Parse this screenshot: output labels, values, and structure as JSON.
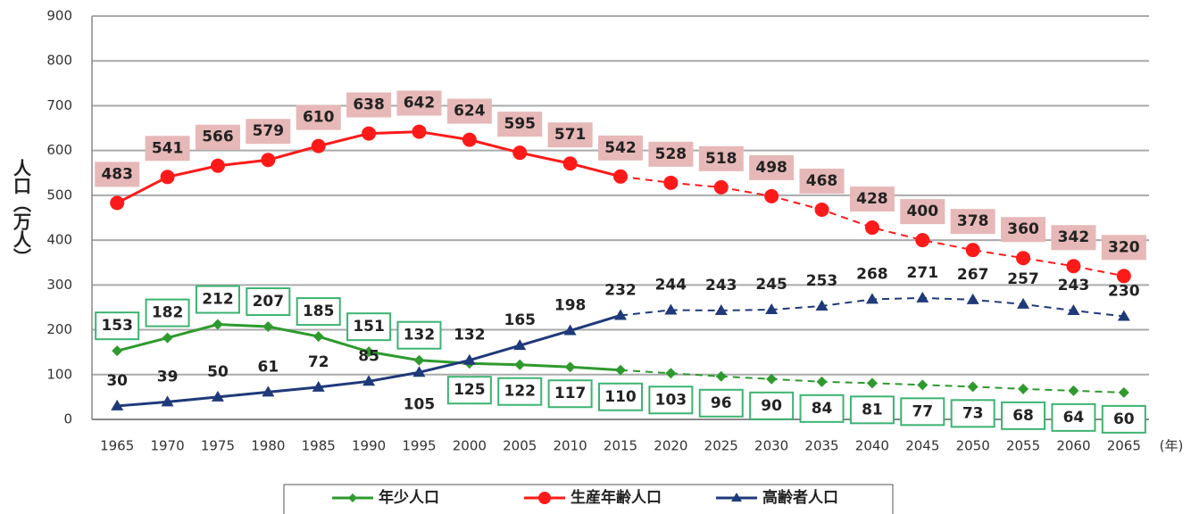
{
  "chart_data": {
    "type": "line",
    "y_label": "人口（万人）",
    "x_label": "(年)",
    "categories": [
      "1965",
      "1970",
      "1975",
      "1980",
      "1985",
      "1990",
      "1995",
      "2000",
      "2005",
      "2010",
      "2015",
      "2020",
      "2025",
      "2030",
      "2035",
      "2040",
      "2045",
      "2050",
      "2055",
      "2060",
      "2065"
    ],
    "series": [
      {
        "name": "年少人口",
        "color": "#2e9a2e",
        "marker": "diamond",
        "values": [
          153,
          182,
          212,
          207,
          185,
          151,
          132,
          125,
          122,
          117,
          110,
          103,
          96,
          90,
          84,
          81,
          77,
          73,
          68,
          64,
          60
        ]
      },
      {
        "name": "生産年齢人口",
        "color": "#ff1a1a",
        "marker": "circle",
        "values": [
          483,
          541,
          566,
          579,
          610,
          638,
          642,
          624,
          595,
          571,
          542,
          528,
          518,
          498,
          468,
          428,
          400,
          378,
          360,
          342,
          320
        ]
      },
      {
        "name": "高齢者人口",
        "color": "#1f3a7a",
        "marker": "triangle",
        "values": [
          30,
          39,
          50,
          61,
          72,
          85,
          105,
          132,
          165,
          198,
          232,
          244,
          243,
          245,
          253,
          268,
          271,
          267,
          257,
          243,
          230
        ]
      }
    ],
    "ylim": [
      0,
      900
    ],
    "yticks": [
      0,
      100,
      200,
      300,
      400,
      500,
      600,
      700,
      800,
      900
    ],
    "grid": true,
    "dash_after": 2015,
    "legend": "bottom"
  }
}
